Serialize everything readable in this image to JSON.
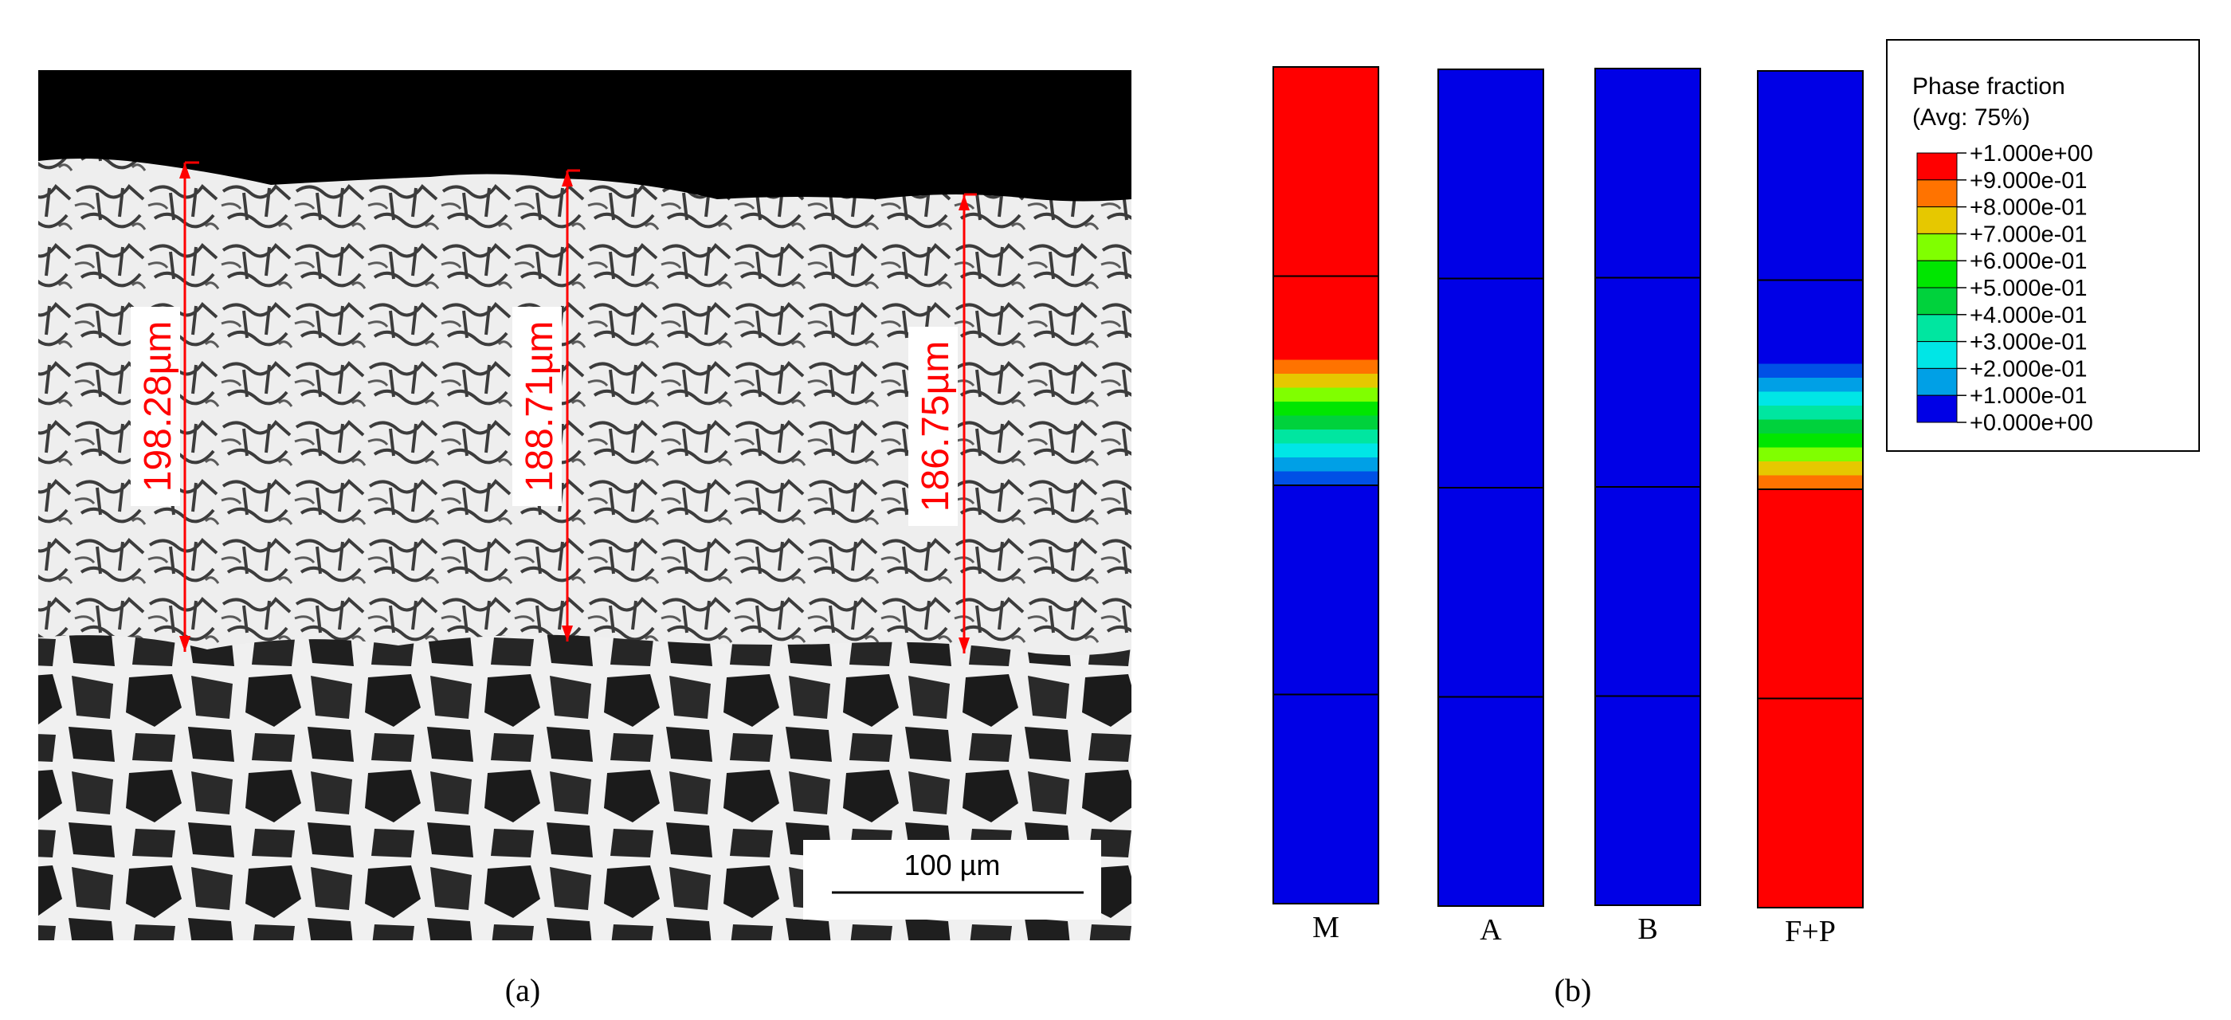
{
  "panel_a": {
    "caption": "(a)",
    "measurements": [
      "198.28µm",
      "188.71µm",
      "186.75µm"
    ],
    "scale_bar": "100 µm"
  },
  "panel_b": {
    "caption": "(b)",
    "columns": [
      {
        "label": "M",
        "segments": [
          1,
          1,
          1,
          1,
          1,
          1,
          1,
          1,
          1,
          1,
          1,
          1,
          1,
          1,
          1,
          1,
          1,
          1,
          1,
          1,
          1,
          0.9,
          0.8,
          0.7,
          0.6,
          0.5,
          0.4,
          0.3,
          0.2,
          0.1,
          0,
          0,
          0,
          0,
          0,
          0,
          0,
          0,
          0,
          0,
          0,
          0,
          0,
          0,
          0,
          0,
          0,
          0,
          0,
          0,
          0,
          0,
          0,
          0,
          0,
          0,
          0,
          0,
          0,
          0
        ]
      },
      {
        "label": "A",
        "segments": [
          0,
          0,
          0,
          0,
          0,
          0,
          0,
          0,
          0,
          0,
          0,
          0,
          0,
          0,
          0,
          0,
          0,
          0,
          0,
          0,
          0,
          0,
          0,
          0,
          0,
          0,
          0,
          0,
          0,
          0,
          0,
          0,
          0,
          0,
          0,
          0,
          0,
          0,
          0,
          0,
          0,
          0,
          0,
          0,
          0,
          0,
          0,
          0,
          0,
          0,
          0,
          0,
          0,
          0,
          0,
          0,
          0,
          0,
          0,
          0
        ]
      },
      {
        "label": "B",
        "segments": [
          0,
          0,
          0,
          0,
          0,
          0,
          0,
          0,
          0,
          0,
          0,
          0,
          0,
          0,
          0,
          0,
          0,
          0,
          0,
          0,
          0,
          0,
          0,
          0,
          0,
          0,
          0,
          0,
          0,
          0,
          0,
          0,
          0,
          0,
          0,
          0,
          0,
          0,
          0,
          0,
          0,
          0,
          0,
          0,
          0,
          0,
          0,
          0,
          0,
          0,
          0,
          0,
          0,
          0,
          0,
          0,
          0,
          0,
          0,
          0
        ]
      },
      {
        "label": "F+P",
        "segments": [
          0,
          0,
          0,
          0,
          0,
          0,
          0,
          0,
          0,
          0,
          0,
          0,
          0,
          0,
          0,
          0,
          0,
          0,
          0,
          0,
          0,
          0.1,
          0.2,
          0.3,
          0.4,
          0.5,
          0.6,
          0.7,
          0.8,
          0.9,
          1,
          1,
          1,
          1,
          1,
          1,
          1,
          1,
          1,
          1,
          1,
          1,
          1,
          1,
          1,
          1,
          1,
          1,
          1,
          1,
          1,
          1,
          1,
          1,
          1,
          1,
          1,
          1,
          1,
          1
        ]
      }
    ],
    "legend": {
      "title_line1": "Phase fraction",
      "title_line2": "(Avg: 75%)",
      "labels": [
        "+1.000e+00",
        "+9.000e-01",
        "+8.000e-01",
        "+7.000e-01",
        "+6.000e-01",
        "+5.000e-01",
        "+4.000e-01",
        "+3.000e-01",
        "+2.000e-01",
        "+1.000e-01",
        "+0.000e+00"
      ],
      "colors": [
        "#ff0000",
        "#ff7300",
        "#e6c800",
        "#80ff00",
        "#00e600",
        "#00d23c",
        "#00e6a0",
        "#00e6e6",
        "#00a0e6",
        "#0050e6",
        "#0000e6"
      ]
    }
  }
}
